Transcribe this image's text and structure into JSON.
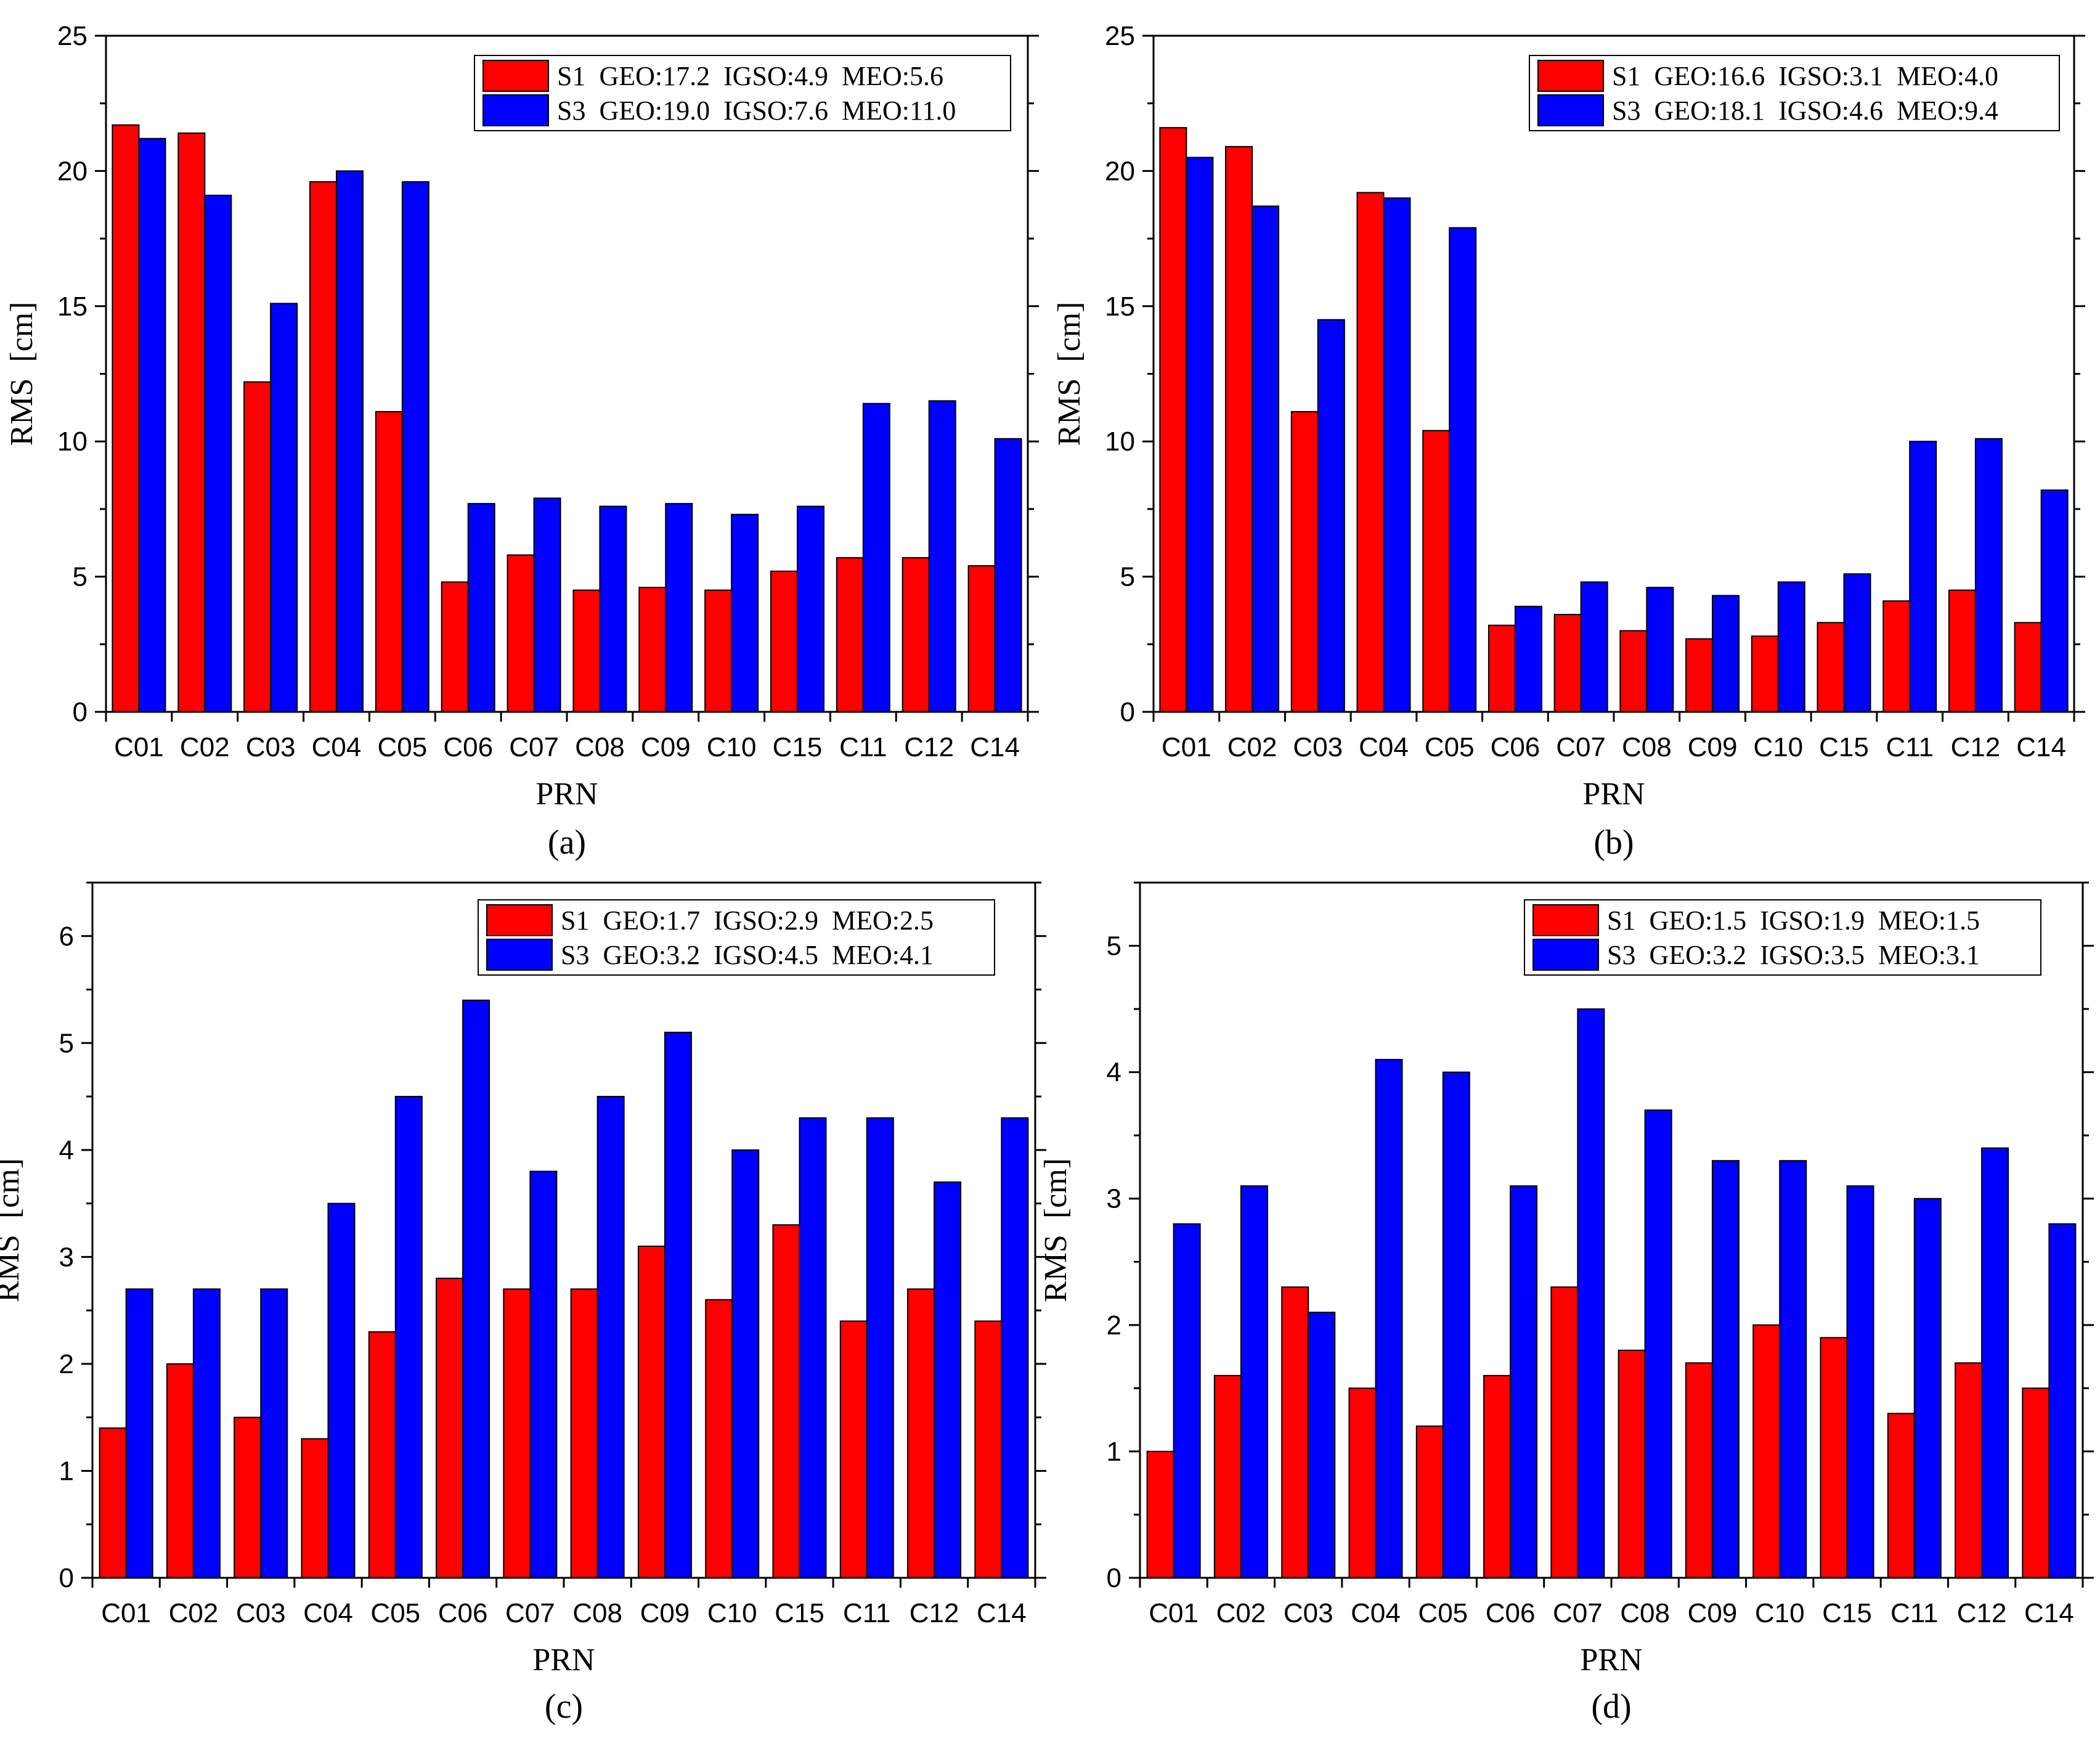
{
  "colors": {
    "S1": "#ff0000",
    "S3": "#0000ff",
    "axis": "#000000"
  },
  "chart_data": [
    {
      "type": "bar",
      "panel_label": "a",
      "caption": "(a)",
      "xlabel": "PRN",
      "ylabel": "RMS  [cm]",
      "ylim": [
        0,
        25
      ],
      "yticks": [
        0,
        5,
        10,
        15,
        20,
        25
      ],
      "categories": [
        "C01",
        "C02",
        "C03",
        "C04",
        "C05",
        "C06",
        "C07",
        "C08",
        "C09",
        "C10",
        "C15",
        "C11",
        "C12",
        "C14"
      ],
      "series": [
        {
          "name": "S1",
          "legend": "S1  GEO:17.2  IGSO:4.9  MEO:5.6",
          "values": [
            21.7,
            21.4,
            12.2,
            19.6,
            11.1,
            4.8,
            5.8,
            4.5,
            4.6,
            4.5,
            5.2,
            5.7,
            5.7,
            5.4
          ]
        },
        {
          "name": "S3",
          "legend": "S3  GEO:19.0  IGSO:7.6  MEO:11.0",
          "values": [
            21.2,
            19.1,
            15.1,
            20.0,
            19.6,
            7.7,
            7.9,
            7.6,
            7.7,
            7.3,
            7.6,
            11.4,
            11.5,
            10.1
          ]
        }
      ]
    },
    {
      "type": "bar",
      "panel_label": "b",
      "caption": "(b)",
      "xlabel": "PRN",
      "ylabel": "RMS  [cm]",
      "ylim": [
        0,
        25
      ],
      "yticks": [
        0,
        5,
        10,
        15,
        20,
        25
      ],
      "categories": [
        "C01",
        "C02",
        "C03",
        "C04",
        "C05",
        "C06",
        "C07",
        "C08",
        "C09",
        "C10",
        "C15",
        "C11",
        "C12",
        "C14"
      ],
      "series": [
        {
          "name": "S1",
          "legend": "S1  GEO:16.6  IGSO:3.1  MEO:4.0",
          "values": [
            21.6,
            20.9,
            11.1,
            19.2,
            10.4,
            3.2,
            3.6,
            3.0,
            2.7,
            2.8,
            3.3,
            4.1,
            4.5,
            3.3
          ]
        },
        {
          "name": "S3",
          "legend": "S3  GEO:18.1  IGSO:4.6  MEO:9.4",
          "values": [
            20.5,
            18.7,
            14.5,
            19.0,
            17.9,
            3.9,
            4.8,
            4.6,
            4.3,
            4.8,
            5.1,
            10.0,
            10.1,
            8.2
          ]
        }
      ]
    },
    {
      "type": "bar",
      "panel_label": "c",
      "caption": "(c)",
      "xlabel": "PRN",
      "ylabel": "RMS  [cm]",
      "ylim": [
        0,
        6.5
      ],
      "yticks": [
        0,
        1,
        2,
        3,
        4,
        5,
        6
      ],
      "categories": [
        "C01",
        "C02",
        "C03",
        "C04",
        "C05",
        "C06",
        "C07",
        "C08",
        "C09",
        "C10",
        "C15",
        "C11",
        "C12",
        "C14"
      ],
      "series": [
        {
          "name": "S1",
          "legend": "S1  GEO:1.7  IGSO:2.9  MEO:2.5",
          "values": [
            1.4,
            2.0,
            1.5,
            1.3,
            2.3,
            2.8,
            2.7,
            2.7,
            3.1,
            2.6,
            3.3,
            2.4,
            2.7,
            2.4
          ]
        },
        {
          "name": "S3",
          "legend": "S3  GEO:3.2  IGSO:4.5  MEO:4.1",
          "values": [
            2.7,
            2.7,
            2.7,
            3.5,
            4.5,
            5.4,
            3.8,
            4.5,
            5.1,
            4.0,
            4.3,
            4.3,
            3.7,
            4.3
          ]
        }
      ]
    },
    {
      "type": "bar",
      "panel_label": "d",
      "caption": "(d)",
      "xlabel": "PRN",
      "ylabel": "RMS  [cm]",
      "ylim": [
        0,
        5.5
      ],
      "yticks": [
        0,
        1,
        2,
        3,
        4,
        5
      ],
      "categories": [
        "C01",
        "C02",
        "C03",
        "C04",
        "C05",
        "C06",
        "C07",
        "C08",
        "C09",
        "C10",
        "C15",
        "C11",
        "C12",
        "C14"
      ],
      "series": [
        {
          "name": "S1",
          "legend": "S1  GEO:1.5  IGSO:1.9  MEO:1.5",
          "values": [
            1.0,
            1.6,
            2.3,
            1.5,
            1.2,
            1.6,
            2.3,
            1.8,
            1.7,
            2.0,
            1.9,
            1.3,
            1.7,
            1.5
          ]
        },
        {
          "name": "S3",
          "legend": "S3  GEO:3.2  IGSO:3.5  MEO:3.1",
          "values": [
            2.8,
            3.1,
            2.1,
            4.1,
            4.0,
            3.1,
            4.5,
            3.7,
            3.3,
            3.3,
            3.1,
            3.0,
            3.4,
            2.8
          ]
        }
      ]
    }
  ]
}
